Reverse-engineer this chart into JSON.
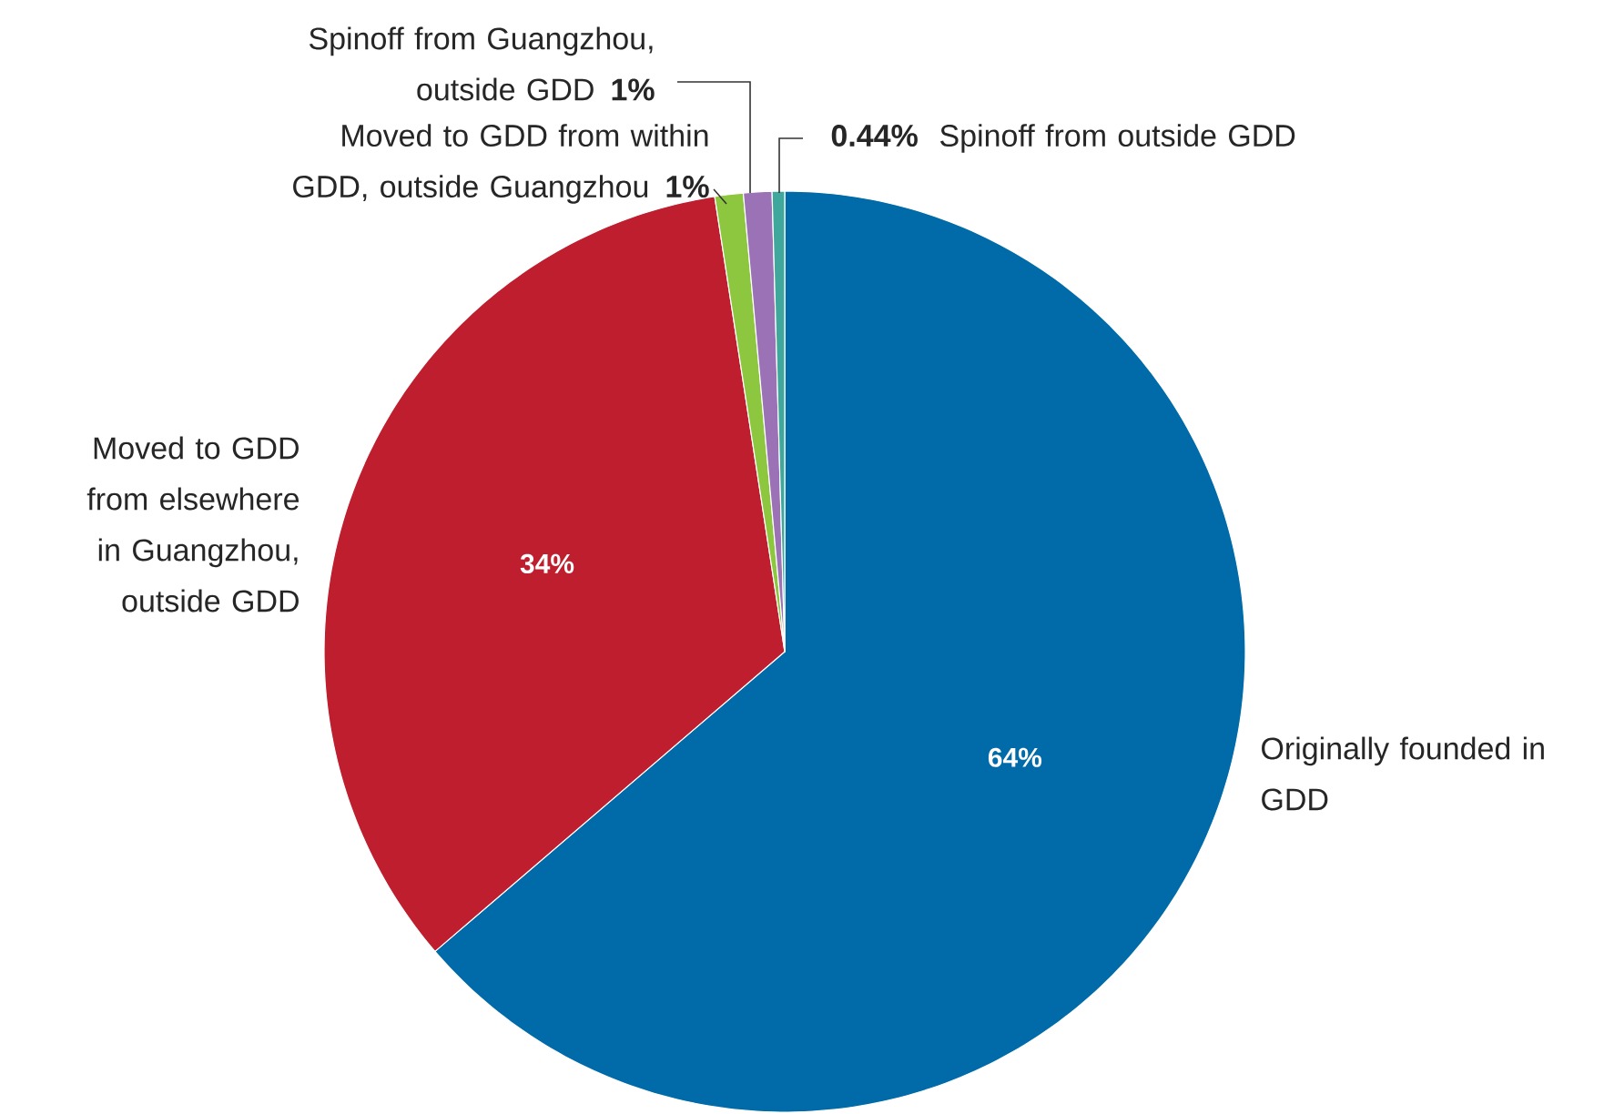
{
  "chart_data": {
    "type": "pie",
    "categories": [
      "Originally founded in GDD",
      "Moved to GDD from elsewhere in Guangzhou, outside GDD",
      "Moved to GDD from within GDD, outside Guangzhou",
      "Spinoff from Guangzhou, outside GDD",
      "Spinoff from outside GDD"
    ],
    "values": [
      64,
      34,
      1,
      1,
      0.44
    ],
    "colors": [
      "#006ba8",
      "#be1e2d",
      "#8dc63f",
      "#9b72b6",
      "#3fa79b"
    ],
    "value_labels": [
      "64%",
      "34%",
      "1%",
      "1%",
      "0.44%"
    ]
  }
}
